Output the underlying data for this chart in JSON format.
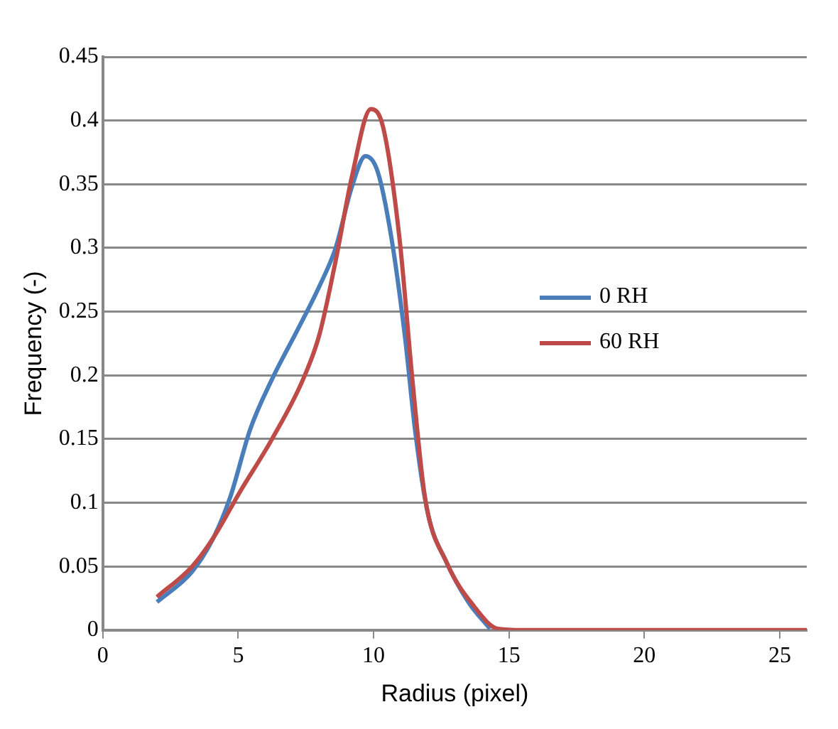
{
  "chart_data": {
    "type": "line",
    "xlabel": "Radius (pixel)",
    "ylabel": "Frequency (-)",
    "xlim": [
      0,
      26
    ],
    "xticks": [
      0,
      5,
      10,
      15,
      20,
      25
    ],
    "ylim": [
      0,
      0.45
    ],
    "yticks": [
      0,
      0.05,
      0.1,
      0.15,
      0.2,
      0.25,
      0.3,
      0.35,
      0.4,
      0.45
    ],
    "grid": "y",
    "legend": "right",
    "marker": "none",
    "line_style": "solid",
    "series": [
      {
        "name": "0 RH",
        "color": "#4a7ebb",
        "x": [
          2,
          3.3,
          4.1,
          4.7,
          5.45,
          6.25,
          7.2,
          8,
          8.6,
          9.2,
          9.7,
          10.15,
          10.65,
          11.15,
          11.55,
          12,
          12.7,
          13.5,
          14.3
        ],
        "values": [
          0.022,
          0.046,
          0.073,
          0.104,
          0.158,
          0.197,
          0.236,
          0.27,
          0.3,
          0.348,
          0.372,
          0.36,
          0.309,
          0.232,
          0.154,
          0.092,
          0.053,
          0.022,
          0.001
        ]
      },
      {
        "name": "60 RH",
        "color": "#be4b48",
        "x": [
          2,
          3.3,
          4.1,
          5.05,
          6.25,
          7.4,
          8,
          8.6,
          9.2,
          9.9,
          10.35,
          10.95,
          11.45,
          11.9,
          12.7,
          13.7,
          14.6,
          15.5,
          16,
          20,
          26
        ],
        "values": [
          0.026,
          0.05,
          0.073,
          0.108,
          0.15,
          0.197,
          0.232,
          0.29,
          0.356,
          0.409,
          0.395,
          0.309,
          0.193,
          0.104,
          0.053,
          0.019,
          0.001,
          0,
          0,
          0,
          0
        ]
      }
    ]
  }
}
